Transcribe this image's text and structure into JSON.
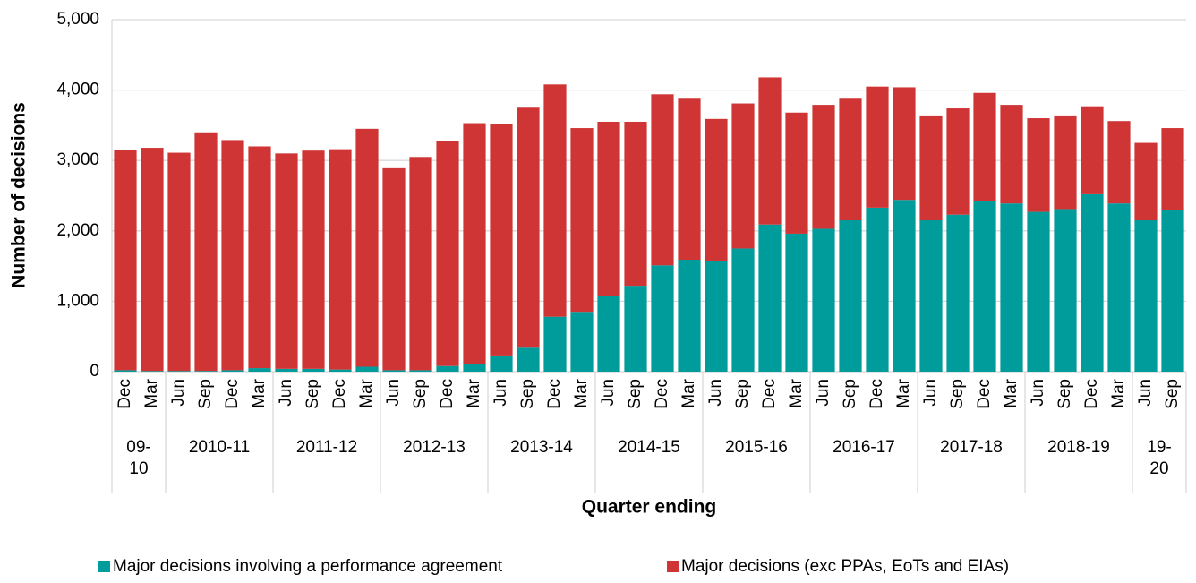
{
  "chart_data": {
    "type": "stacked_bar",
    "y_label": "Number of decisions",
    "x_label": "Quarter ending",
    "categories": [
      "Dec",
      "Mar",
      "Jun",
      "Sep",
      "Dec",
      "Mar",
      "Jun",
      "Sep",
      "Dec",
      "Mar",
      "Jun",
      "Sep",
      "Dec",
      "Mar",
      "Jun",
      "Sep",
      "Dec",
      "Mar",
      "Jun",
      "Sep",
      "Dec",
      "Mar",
      "Jun",
      "Sep",
      "Dec",
      "Mar",
      "Jun",
      "Sep",
      "Dec",
      "Mar",
      "Jun",
      "Sep",
      "Dec",
      "Mar",
      "Jun",
      "Sep",
      "Dec",
      "Mar",
      "Jun",
      "Sep"
    ],
    "groups": [
      {
        "label": "09-10",
        "span": 2
      },
      {
        "label": "2010-11",
        "span": 4
      },
      {
        "label": "2011-12",
        "span": 4
      },
      {
        "label": "2012-13",
        "span": 4
      },
      {
        "label": "2013-14",
        "span": 4
      },
      {
        "label": "2014-15",
        "span": 4
      },
      {
        "label": "2015-16",
        "span": 4
      },
      {
        "label": "2016-17",
        "span": 4
      },
      {
        "label": "2017-18",
        "span": 4
      },
      {
        "label": "2018-19",
        "span": 4
      },
      {
        "label": "19-20",
        "span": 2
      }
    ],
    "series": [
      {
        "name": "Major decisions involving a performance agreement",
        "color": "#009b9b",
        "values": [
          20,
          10,
          10,
          10,
          20,
          50,
          40,
          40,
          30,
          70,
          20,
          20,
          80,
          110,
          230,
          340,
          780,
          850,
          1070,
          1220,
          1510,
          1590,
          1570,
          1750,
          2090,
          1960,
          2030,
          2150,
          2330,
          2440,
          2150,
          2230,
          2420,
          2390,
          2270,
          2310,
          2520,
          2390,
          2150,
          2300
        ]
      },
      {
        "name": "Major decisions (exc PPAs, EoTs and EIAs)",
        "color": "#d03535",
        "values": [
          3130,
          3170,
          3100,
          3390,
          3270,
          3150,
          3060,
          3100,
          3130,
          3380,
          2870,
          3030,
          3200,
          3420,
          3290,
          3410,
          3300,
          2610,
          2480,
          2330,
          2430,
          2300,
          2020,
          2060,
          2090,
          1720,
          1760,
          1740,
          1720,
          1600,
          1490,
          1510,
          1540,
          1400,
          1330,
          1330,
          1250,
          1170,
          1100,
          1160
        ]
      }
    ],
    "ylim": [
      0,
      5000
    ],
    "yticks": [
      0,
      {
        "value": 1000,
        "label": "1,000"
      },
      {
        "value": 2000,
        "label": "2,000"
      },
      {
        "value": 3000,
        "label": "3,000"
      },
      {
        "value": 4000,
        "label": "4,000"
      },
      {
        "value": 5000,
        "label": "5,000"
      }
    ],
    "grid": true,
    "legend": "bottom"
  }
}
